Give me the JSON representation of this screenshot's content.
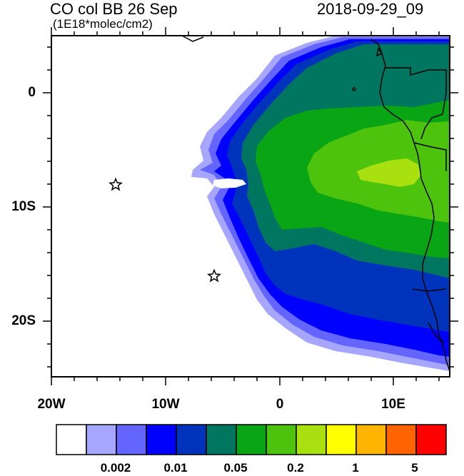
{
  "title": {
    "left": "CO col BB 26 Sep",
    "units": "(1E18*molec/cm2)",
    "right": "2018-09-29_09"
  },
  "axes": {
    "lat_ticks": [
      "0",
      "10S",
      "20S"
    ],
    "lon_ticks": [
      "20W",
      "10W",
      "0",
      "10E"
    ]
  },
  "map": {
    "extent_lon": [
      -20,
      15
    ],
    "extent_lat": [
      -25,
      5
    ],
    "markers": [
      {
        "name": "star-marker",
        "lon": -14.3,
        "lat": -8.0
      },
      {
        "name": "star-marker",
        "lon": -5.8,
        "lat": -16.0
      }
    ]
  },
  "colorbar": {
    "colors": [
      "#ffffff",
      "#a6a6ff",
      "#6464ff",
      "#0000ff",
      "#0033bb",
      "#007560",
      "#0aa514",
      "#4dc30d",
      "#a8e010",
      "#ffff00",
      "#ffb400",
      "#ff6400",
      "#ff0000"
    ],
    "labels": [
      "0.002",
      "0.01",
      "0.05",
      "0.2",
      "1",
      "5"
    ]
  }
}
